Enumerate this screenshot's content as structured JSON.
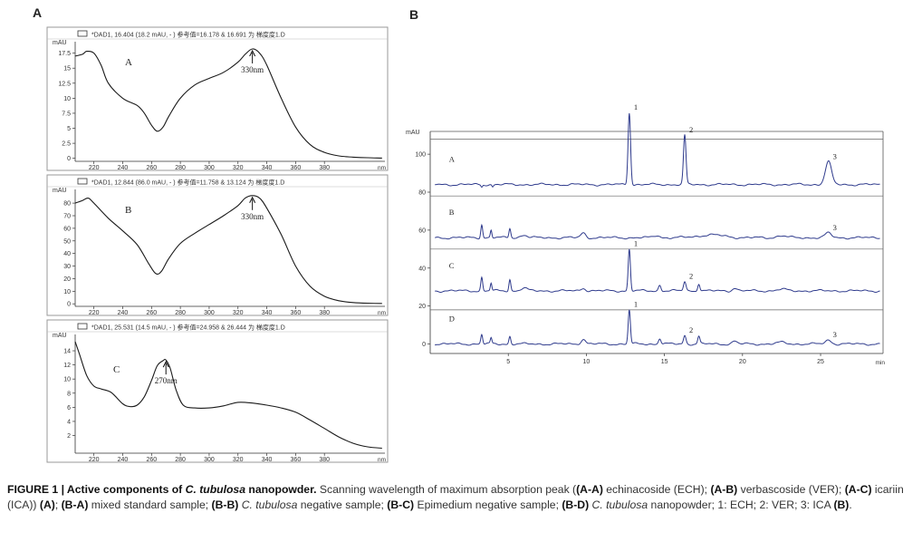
{
  "panel_labels": {
    "a": "A",
    "b": "B"
  },
  "caption": {
    "lead": "FIGURE 1 | Active components of ",
    "lead_italic": "C. tubulosa",
    "lead_end": " nanopowder.",
    "body_1": " Scanning wavelength of maximum absorption peak (",
    "ab_aa": "(A-A)",
    "t_aa": " echinacoside (ECH); ",
    "ab_ab": "(A-B)",
    "t_ab": " verbascoside (VER); ",
    "ab_ac": "(A-C)",
    "t_ac": " icariin (ICA)) ",
    "ab_a": "(A)",
    "t_a": "; ",
    "ab_ba": "(B-A)",
    "t_ba": " mixed standard sample; ",
    "ab_bb": "(B-B)",
    "it_bb": " C. tubulosa",
    "t_bb": " negative sample; ",
    "ab_bc": "(B-C)",
    "t_bc": " Epimedium negative sample; ",
    "ab_bd": "(B-D)",
    "it_bd": " C. tubulosa",
    "t_bd": " nanopowder; 1: ECH; 2: VER; 3: ICA ",
    "ab_b": "(B)",
    "t_end": "."
  },
  "chart_data": [
    {
      "type": "line",
      "panel": "A-A",
      "header": "*DAD1, 16.404 (18.2 mAU, - ) 参考值=16.178 & 16.691 为 梯度度1.D",
      "ylabel": "mAU",
      "xlabel": "nm",
      "letter": "A",
      "annotation": "330nm",
      "annotation_x": 330,
      "xlim": [
        207,
        422
      ],
      "ylim": [
        -0.5,
        18.8
      ],
      "xticks": [
        220,
        240,
        260,
        280,
        300,
        320,
        340,
        360,
        380
      ],
      "yticks": [
        0,
        2.5,
        5,
        7.5,
        10,
        12.5,
        15,
        17.5
      ],
      "series": [
        {
          "x": [
            207,
            212,
            215,
            220,
            225,
            230,
            240,
            250,
            255,
            260,
            264,
            268,
            272,
            280,
            290,
            300,
            310,
            320,
            325,
            330,
            335,
            340,
            350,
            360,
            370,
            380,
            390,
            400,
            410,
            420
          ],
          "y": [
            17.0,
            17.3,
            17.8,
            17.5,
            15.5,
            12.5,
            10.0,
            8.8,
            7.5,
            5.5,
            4.5,
            5.2,
            7.0,
            10.0,
            12.2,
            13.3,
            14.3,
            16.0,
            17.3,
            18.2,
            17.5,
            15.5,
            10.0,
            5.2,
            2.3,
            1.0,
            0.4,
            0.2,
            0.1,
            0.05
          ]
        }
      ]
    },
    {
      "type": "line",
      "panel": "A-B",
      "header": "*DAD1, 12.844 (86.0 mAU, - ) 参考值=11.758 & 13.124 为 梯度度1.D",
      "ylabel": "mAU",
      "xlabel": "nm",
      "letter": "B",
      "annotation": "330nm",
      "annotation_x": 330,
      "xlim": [
        207,
        422
      ],
      "ylim": [
        -2,
        88
      ],
      "xticks": [
        220,
        240,
        260,
        280,
        300,
        320,
        340,
        360,
        380
      ],
      "yticks": [
        0,
        10,
        20,
        30,
        40,
        50,
        60,
        70,
        80
      ],
      "series": [
        {
          "x": [
            207,
            212,
            216,
            220,
            230,
            240,
            250,
            258,
            263,
            267,
            272,
            280,
            290,
            300,
            310,
            320,
            325,
            330,
            335,
            340,
            350,
            360,
            370,
            380,
            390,
            400,
            410,
            420
          ],
          "y": [
            80,
            82,
            84,
            80,
            68,
            58,
            47,
            32,
            24,
            26,
            36,
            48,
            56,
            63,
            70,
            78,
            84,
            86,
            84,
            76,
            55,
            30,
            14,
            6,
            2.5,
            1,
            0.5,
            0.3
          ]
        }
      ]
    },
    {
      "type": "line",
      "panel": "A-C",
      "header": "*DAD1, 25.531 (14.5 mAU, - ) 参考值=24.958 & 26.444 为 梯度度1.D",
      "ylabel": "mAU",
      "xlabel": "nm",
      "letter": "C",
      "annotation": "270nm",
      "annotation_x": 270,
      "xlim": [
        207,
        422
      ],
      "ylim": [
        -0.5,
        15.8
      ],
      "xticks": [
        220,
        240,
        260,
        280,
        300,
        320,
        340,
        360,
        380
      ],
      "yticks": [
        2,
        4,
        6,
        8,
        10,
        12,
        14
      ],
      "series": [
        {
          "x": [
            207,
            210,
            215,
            220,
            225,
            232,
            240,
            245,
            250,
            255,
            260,
            264,
            268,
            270,
            273,
            277,
            282,
            290,
            300,
            310,
            320,
            330,
            340,
            350,
            360,
            370,
            380,
            390,
            400,
            410,
            420
          ],
          "y": [
            15.3,
            13.5,
            10.5,
            9.0,
            8.6,
            8.1,
            6.5,
            6.1,
            6.3,
            7.5,
            9.8,
            11.9,
            12.6,
            12.7,
            11.5,
            8.5,
            6.3,
            5.9,
            5.9,
            6.2,
            6.7,
            6.6,
            6.3,
            5.9,
            5.3,
            4.2,
            3.0,
            1.8,
            0.9,
            0.4,
            0.2
          ]
        }
      ]
    },
    {
      "type": "line",
      "panel": "B",
      "ylabel": "mAU",
      "xlabel": "min",
      "xlim": [
        0,
        29
      ],
      "ylim": [
        -5,
        112
      ],
      "xticks": [
        5,
        10,
        15,
        20,
        25
      ],
      "yticks": [
        0,
        20,
        40,
        60,
        80,
        100
      ],
      "series": [
        {
          "name": "A",
          "baseline": 84,
          "peaks": [
            [
              3.3,
              -1.2,
              0.05
            ],
            [
              4.0,
              -1.2,
              0.05
            ],
            [
              12.75,
              38,
              0.08
            ],
            [
              16.3,
              26,
              0.08
            ],
            [
              25.5,
              12,
              0.2
            ]
          ],
          "peak_labels": [
            [
              "1",
              12.75
            ],
            [
              "2",
              16.3
            ],
            [
              "3",
              25.5
            ]
          ]
        },
        {
          "name": "B",
          "baseline": 56,
          "peaks": [
            [
              3.3,
              7,
              0.06
            ],
            [
              3.9,
              4,
              0.05
            ],
            [
              5.1,
              5,
              0.06
            ],
            [
              6.0,
              1.5,
              0.2
            ],
            [
              9.8,
              2.5,
              0.15
            ],
            [
              14.5,
              1.2,
              0.2
            ],
            [
              18,
              1.5,
              0.8
            ],
            [
              22.5,
              1,
              0.3
            ],
            [
              25.5,
              2.5,
              0.2
            ]
          ],
          "peak_labels": [
            [
              "3",
              25.5
            ]
          ]
        },
        {
          "name": "C",
          "baseline": 28,
          "peaks": [
            [
              3.3,
              7,
              0.06
            ],
            [
              3.9,
              4,
              0.05
            ],
            [
              5.1,
              6,
              0.06
            ],
            [
              6.0,
              1.5,
              0.2
            ],
            [
              9.8,
              1.5,
              0.15
            ],
            [
              12.75,
              22,
              0.07
            ],
            [
              14.7,
              3,
              0.08
            ],
            [
              16.3,
              5,
              0.08
            ],
            [
              17.2,
              4,
              0.07
            ],
            [
              19.5,
              1.5,
              0.15
            ],
            [
              22.5,
              0.8,
              0.3
            ]
          ],
          "peak_labels": [
            [
              "1",
              12.75
            ],
            [
              "2",
              16.3
            ]
          ]
        },
        {
          "name": "D",
          "baseline": 0,
          "peaks": [
            [
              3.3,
              5,
              0.06
            ],
            [
              3.9,
              3,
              0.05
            ],
            [
              5.1,
              4,
              0.06
            ],
            [
              9.8,
              2.5,
              0.15
            ],
            [
              12.75,
              18,
              0.07
            ],
            [
              14.7,
              3,
              0.08
            ],
            [
              16.3,
              4.5,
              0.08
            ],
            [
              17.2,
              4,
              0.07
            ],
            [
              19.5,
              1.5,
              0.15
            ],
            [
              22.5,
              0.8,
              0.3
            ],
            [
              25.5,
              2,
              0.2
            ]
          ],
          "peak_labels": [
            [
              "1",
              12.75
            ],
            [
              "2",
              16.3
            ],
            [
              "3",
              25.5
            ]
          ]
        }
      ]
    }
  ]
}
